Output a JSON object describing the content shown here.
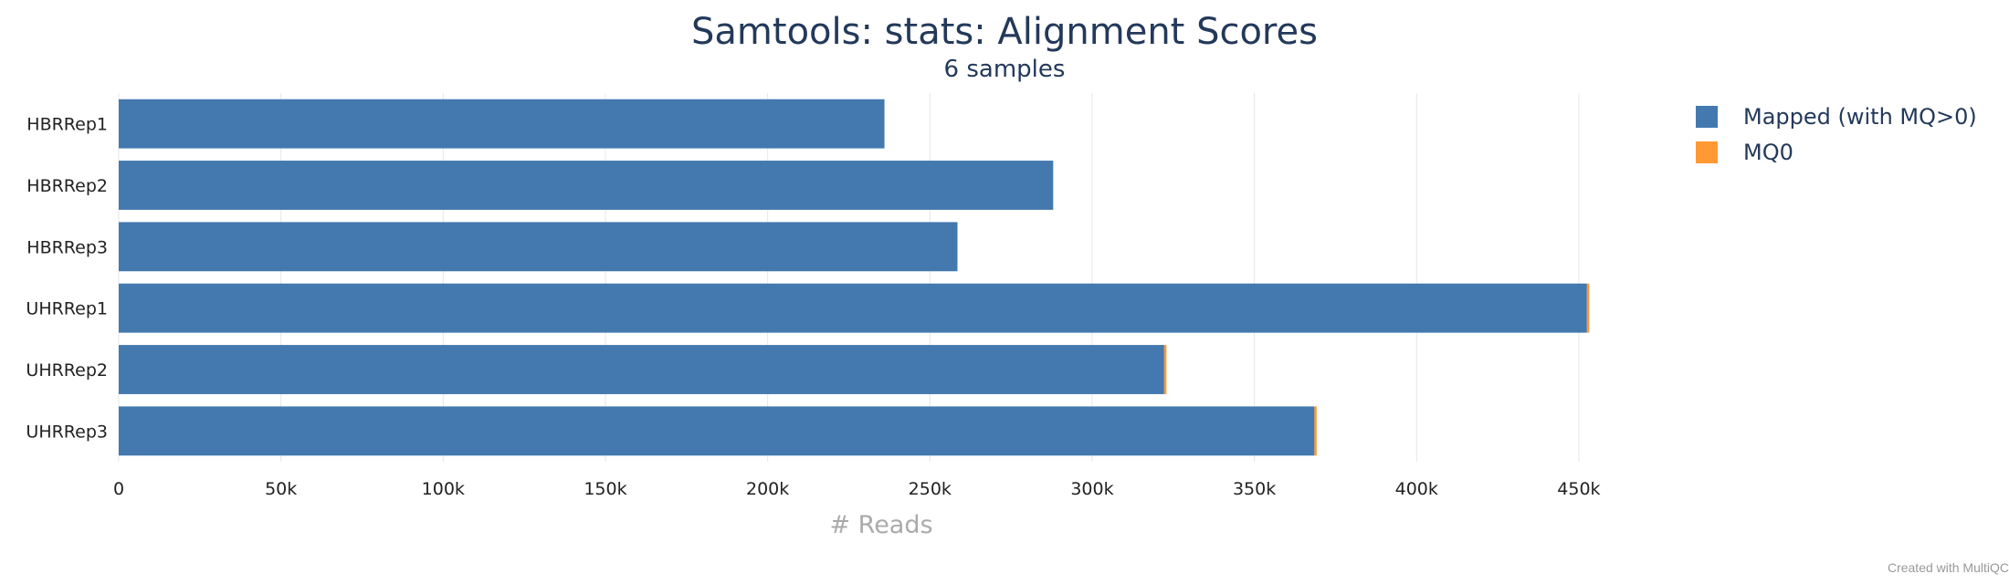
{
  "chart_data": {
    "type": "bar",
    "orientation": "horizontal",
    "stacked": true,
    "title": "Samtools: stats: Alignment Scores",
    "subtitle": "6 samples",
    "xlabel": "# Reads",
    "ylabel": "",
    "categories": [
      "HBRRep1",
      "HBRRep2",
      "HBRRep3",
      "UHRRep1",
      "UHRRep2",
      "UHRRep3"
    ],
    "series": [
      {
        "name": "Mapped (with MQ>0)",
        "color": "#4479b0",
        "values": [
          236000,
          288000,
          258500,
          452500,
          322200,
          368500
        ]
      },
      {
        "name": "MQ0",
        "color": "#ff9933",
        "values": [
          0,
          0,
          0,
          700,
          600,
          600
        ]
      }
    ],
    "xlim": [
      0,
      470000
    ],
    "xticks": [
      0,
      50000,
      100000,
      150000,
      200000,
      250000,
      300000,
      350000,
      400000,
      450000
    ],
    "xtick_labels": [
      "0",
      "50k",
      "100k",
      "150k",
      "200k",
      "250k",
      "300k",
      "350k",
      "400k",
      "450k"
    ],
    "grid": true,
    "legend_position": "top-right"
  },
  "credit": "Created with MultiQC"
}
